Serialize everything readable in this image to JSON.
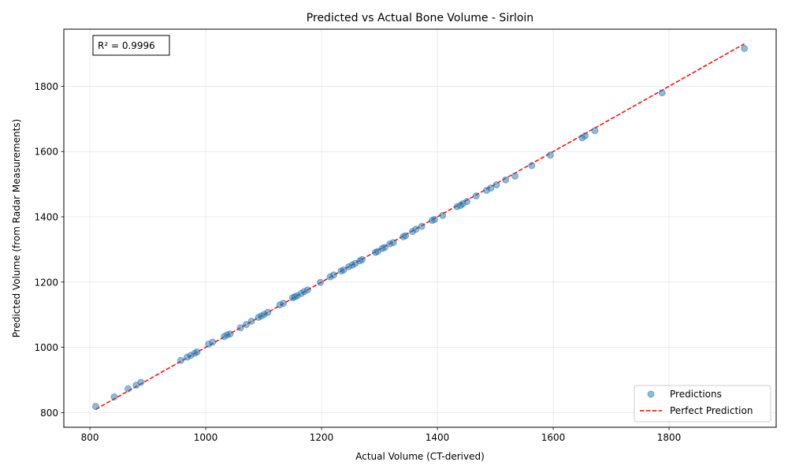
{
  "chart_data": {
    "type": "scatter",
    "title": "Predicted vs Actual Bone Volume - Sirloin",
    "xlabel": "Actual Volume (CT-derived)",
    "ylabel": "Predicted Volume (from Radar Measurements)",
    "xlim": [
      755,
      1985
    ],
    "ylim": [
      755,
      1975
    ],
    "xticks": [
      800,
      1000,
      1200,
      1400,
      1600,
      1800
    ],
    "yticks": [
      800,
      1000,
      1200,
      1400,
      1600,
      1800
    ],
    "grid": true,
    "legend_position": "bottom-right",
    "annotation": "R² = 0.9996",
    "point_color": "#1f77b4",
    "line_color": "#ff0000",
    "series": [
      {
        "name": "Predictions",
        "kind": "scatter",
        "points": [
          [
            810,
            819
          ],
          [
            842,
            848
          ],
          [
            866,
            873
          ],
          [
            880,
            884
          ],
          [
            888,
            893
          ],
          [
            957,
            960
          ],
          [
            968,
            970
          ],
          [
            974,
            975
          ],
          [
            981,
            982
          ],
          [
            985,
            986
          ],
          [
            1005,
            1010
          ],
          [
            1012,
            1016
          ],
          [
            1032,
            1033
          ],
          [
            1037,
            1038
          ],
          [
            1042,
            1041
          ],
          [
            1060,
            1060
          ],
          [
            1070,
            1070
          ],
          [
            1079,
            1080
          ],
          [
            1091,
            1092
          ],
          [
            1096,
            1096
          ],
          [
            1101,
            1101
          ],
          [
            1107,
            1107
          ],
          [
            1128,
            1130
          ],
          [
            1134,
            1135
          ],
          [
            1150,
            1152
          ],
          [
            1154,
            1155
          ],
          [
            1158,
            1158
          ],
          [
            1165,
            1165
          ],
          [
            1170,
            1171
          ],
          [
            1176,
            1176
          ],
          [
            1198,
            1199
          ],
          [
            1215,
            1216
          ],
          [
            1221,
            1222
          ],
          [
            1234,
            1234
          ],
          [
            1238,
            1237
          ],
          [
            1247,
            1247
          ],
          [
            1253,
            1252
          ],
          [
            1258,
            1257
          ],
          [
            1266,
            1265
          ],
          [
            1270,
            1269
          ],
          [
            1293,
            1291
          ],
          [
            1297,
            1294
          ],
          [
            1305,
            1303
          ],
          [
            1309,
            1306
          ],
          [
            1318,
            1317
          ],
          [
            1324,
            1321
          ],
          [
            1341,
            1339
          ],
          [
            1345,
            1342
          ],
          [
            1357,
            1355
          ],
          [
            1363,
            1362
          ],
          [
            1373,
            1371
          ],
          [
            1391,
            1389
          ],
          [
            1395,
            1392
          ],
          [
            1409,
            1404
          ],
          [
            1434,
            1431
          ],
          [
            1440,
            1435
          ],
          [
            1444,
            1440
          ],
          [
            1451,
            1447
          ],
          [
            1467,
            1464
          ],
          [
            1485,
            1481
          ],
          [
            1492,
            1488
          ],
          [
            1502,
            1498
          ],
          [
            1518,
            1513
          ],
          [
            1534,
            1525
          ],
          [
            1563,
            1557
          ],
          [
            1595,
            1589
          ],
          [
            1650,
            1642
          ],
          [
            1655,
            1648
          ],
          [
            1672,
            1664
          ],
          [
            1788,
            1780
          ],
          [
            1930,
            1916
          ]
        ]
      },
      {
        "name": "Perfect Prediction",
        "kind": "line",
        "points": [
          [
            810,
            810
          ],
          [
            1930,
            1930
          ]
        ]
      }
    ]
  }
}
